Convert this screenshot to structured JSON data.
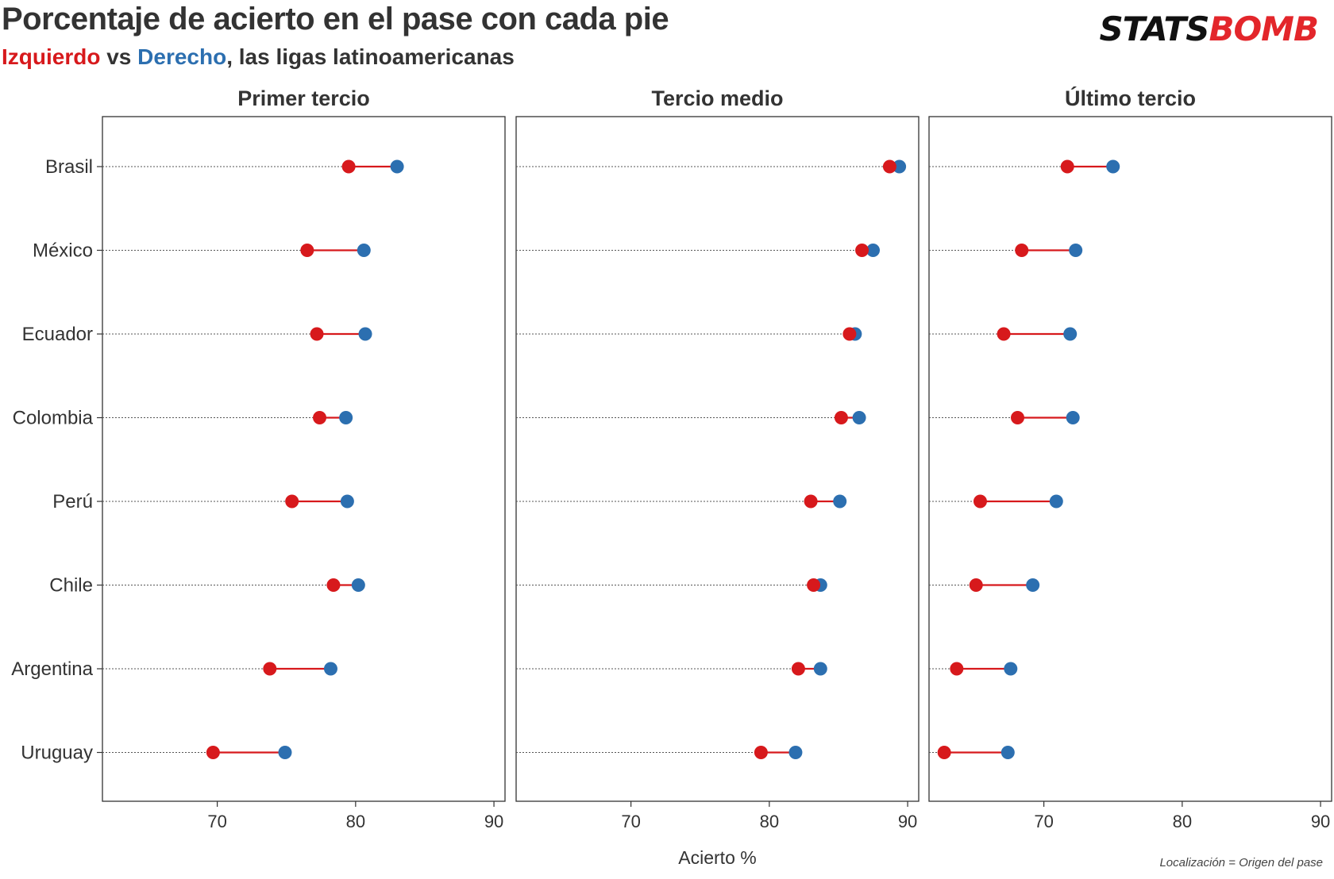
{
  "title": "Porcentaje de acierto en el pase con cada pie",
  "subtitle": {
    "left_label": "Izquierdo",
    "vs": " vs ",
    "right_label": "Derecho",
    "rest": ", las ligas latinoamericanas"
  },
  "logo": {
    "part1": "STATS",
    "part2": "BOMB"
  },
  "caption": "Localización = Origen del pase",
  "colors": {
    "left": "#d7191c",
    "right": "#2c6fb0",
    "frame": "#333333"
  },
  "chart_data": {
    "type": "scatter",
    "subtype": "dumbbell",
    "xlabel": "Acierto %",
    "xticks": [
      70,
      80,
      90
    ],
    "categories": [
      "Brasil",
      "México",
      "Ecuador",
      "Colombia",
      "Perú",
      "Chile",
      "Argentina",
      "Uruguay"
    ],
    "panels": [
      {
        "title": "Primer tercio",
        "xlim": [
          61.7,
          90.8
        ],
        "series": [
          {
            "name": "Izquierdo",
            "values": [
              79.5,
              76.5,
              77.2,
              77.4,
              75.4,
              78.4,
              73.8,
              69.7
            ]
          },
          {
            "name": "Derecho",
            "values": [
              83.0,
              80.6,
              80.7,
              79.3,
              79.4,
              80.2,
              78.2,
              74.9
            ]
          }
        ]
      },
      {
        "title": "Tercio medio",
        "xlim": [
          61.7,
          90.8
        ],
        "series": [
          {
            "name": "Izquierdo",
            "values": [
              88.7,
              86.7,
              85.8,
              85.2,
              83.0,
              83.2,
              82.1,
              79.4
            ]
          },
          {
            "name": "Derecho",
            "values": [
              89.4,
              87.5,
              86.2,
              86.5,
              85.1,
              83.7,
              83.7,
              81.9
            ]
          }
        ]
      },
      {
        "title": "Último tercio",
        "xlim": [
          61.7,
          90.8
        ],
        "series": [
          {
            "name": "Izquierdo",
            "values": [
              71.7,
              68.4,
              67.1,
              68.1,
              65.4,
              65.1,
              63.7,
              62.8
            ]
          },
          {
            "name": "Derecho",
            "values": [
              75.0,
              72.3,
              71.9,
              72.1,
              70.9,
              69.2,
              67.6,
              67.4
            ]
          }
        ]
      }
    ],
    "grid": false,
    "legend": "in subtitle"
  }
}
